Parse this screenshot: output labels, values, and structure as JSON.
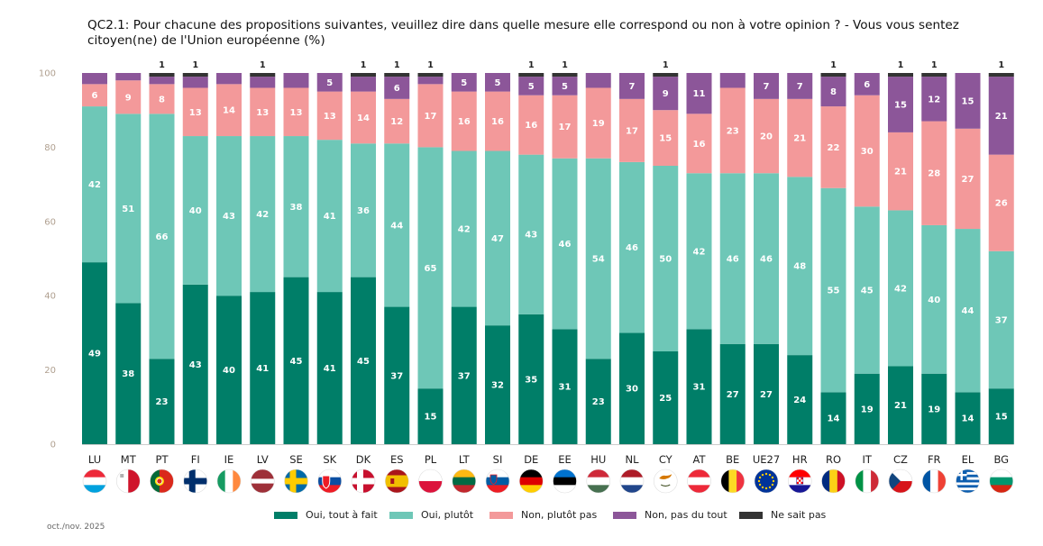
{
  "chart_data": {
    "type": "bar",
    "stacked": true,
    "title": "QC2.1: Pour chacune des propositions suivantes, veuillez dire dans quelle mesure elle correspond ou non à votre opinion ? - Vous vous sentez citoyen(ne) de l'Union européenne (%)",
    "ylim": [
      0,
      100
    ],
    "yticks": [
      0,
      20,
      40,
      60,
      80,
      100
    ],
    "legend_position": "bottom",
    "categories": [
      "LU",
      "MT",
      "PT",
      "FI",
      "IE",
      "LV",
      "SE",
      "SK",
      "DK",
      "ES",
      "PL",
      "LT",
      "SI",
      "DE",
      "EE",
      "HU",
      "NL",
      "CY",
      "AT",
      "BE",
      "UE27",
      "HR",
      "RO",
      "IT",
      "CZ",
      "FR",
      "EL",
      "BG"
    ],
    "series": [
      {
        "name": "Oui, tout à fait",
        "color": "#007e68",
        "values": [
          49,
          38,
          23,
          43,
          40,
          41,
          45,
          41,
          45,
          37,
          15,
          37,
          32,
          35,
          31,
          23,
          30,
          25,
          31,
          27,
          27,
          24,
          14,
          19,
          21,
          19,
          14,
          15
        ]
      },
      {
        "name": "Oui, plutôt",
        "color": "#6ec7b7",
        "values": [
          42,
          51,
          66,
          40,
          43,
          42,
          38,
          41,
          36,
          44,
          65,
          42,
          47,
          43,
          46,
          54,
          46,
          50,
          42,
          46,
          46,
          48,
          55,
          45,
          42,
          40,
          44,
          37
        ]
      },
      {
        "name": "Non, plutôt pas",
        "color": "#f3999a",
        "values": [
          6,
          9,
          8,
          13,
          14,
          13,
          13,
          13,
          14,
          12,
          17,
          16,
          16,
          16,
          17,
          19,
          17,
          15,
          16,
          23,
          20,
          21,
          22,
          30,
          21,
          28,
          27,
          26
        ]
      },
      {
        "name": "Non, pas du tout",
        "color": "#8c5699",
        "values": [
          3,
          2,
          2,
          3,
          3,
          3,
          4,
          5,
          4,
          6,
          2,
          5,
          5,
          5,
          5,
          4,
          7,
          9,
          11,
          4,
          7,
          7,
          8,
          6,
          15,
          12,
          15,
          21
        ]
      },
      {
        "name": "Ne sait pas",
        "color": "#333333",
        "values": [
          0,
          0,
          1,
          1,
          0,
          1,
          0,
          0,
          1,
          1,
          1,
          0,
          0,
          1,
          1,
          0,
          0,
          1,
          0,
          0,
          0,
          0,
          1,
          0,
          1,
          1,
          0,
          1
        ]
      }
    ],
    "value_labels": {
      "Oui, tout à fait": [
        "49",
        "38",
        "23",
        "43",
        "40",
        "41",
        "45",
        "41",
        "45",
        "37",
        "15",
        "37",
        "32",
        "35",
        "31",
        "23",
        "30",
        "25",
        "31",
        "27",
        "27",
        "24",
        "14",
        "19",
        "21",
        "19",
        "14",
        "15"
      ],
      "Oui, plutôt": [
        "42",
        "51",
        "66",
        "40",
        "43",
        "42",
        "38",
        "41",
        "36",
        "44",
        "65",
        "42",
        "47",
        "43",
        "46",
        "54",
        "46",
        "50",
        "42",
        "46",
        "46",
        "48",
        "55",
        "45",
        "42",
        "40",
        "44",
        "37"
      ],
      "Non, plutôt pas": [
        "6",
        "9",
        "8",
        "13",
        "14",
        "13",
        "13",
        "13",
        "14",
        "12",
        "17",
        "16",
        "16",
        "16",
        "17",
        "19",
        "17",
        "15",
        "16",
        "23",
        "20",
        "21",
        "22",
        "30",
        "21",
        "28",
        "27",
        "26"
      ],
      "Non, pas du tout": [
        "",
        "",
        "",
        "",
        "",
        "",
        "",
        "5",
        "",
        "6",
        "",
        "5",
        "5",
        "5",
        "5",
        "",
        "7",
        "9",
        "11",
        "",
        "7",
        "7",
        "8",
        "6",
        "15",
        "12",
        "15",
        "21"
      ],
      "Ne sait pas": [
        "",
        "",
        "1",
        "1",
        "",
        "1",
        "",
        "",
        "1",
        "1",
        "1",
        "",
        "",
        "1",
        "1",
        "",
        "",
        "1",
        "",
        "",
        "",
        "",
        "1",
        "",
        "1",
        "1",
        "",
        "1"
      ]
    }
  },
  "flags": [
    "luxembourg-flag",
    "malta-flag",
    "portugal-flag",
    "finland-flag",
    "ireland-flag",
    "latvia-flag",
    "sweden-flag",
    "slovakia-flag",
    "denmark-flag",
    "spain-flag",
    "poland-flag",
    "lithuania-flag",
    "slovenia-flag",
    "germany-flag",
    "estonia-flag",
    "hungary-flag",
    "netherlands-flag",
    "cyprus-flag",
    "austria-flag",
    "belgium-flag",
    "eu-flag",
    "croatia-flag",
    "romania-flag",
    "italy-flag",
    "czechia-flag",
    "france-flag",
    "greece-flag",
    "bulgaria-flag"
  ],
  "footnote": "oct./nov. 2025"
}
